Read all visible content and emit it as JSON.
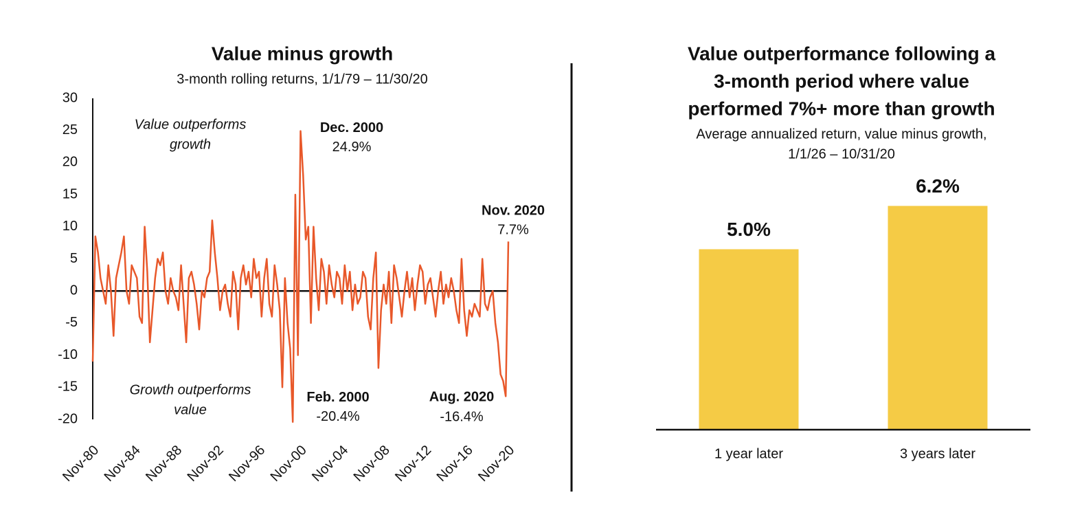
{
  "chart_data": [
    {
      "type": "line",
      "title": "Value minus growth",
      "subtitle": "3-month rolling returns, 1/1/79 – 11/30/20",
      "notes": [
        [
          "Value outperforms",
          "growth"
        ],
        [
          "Growth outperforms",
          "value"
        ]
      ],
      "annotations": [
        {
          "text": "Dec. 2000",
          "value": 24.9,
          "value_label": "24.9%"
        },
        {
          "text": "Feb. 2000",
          "value": -20.4,
          "value_label": "-20.4%"
        },
        {
          "text": "Aug. 2020",
          "value": -16.4,
          "value_label": "-16.4%"
        },
        {
          "text": "Nov. 2020",
          "value": 7.7,
          "value_label": "7.7%"
        }
      ],
      "categories": [
        "Nov-80",
        null,
        null,
        null,
        null,
        null,
        null,
        null,
        null,
        null,
        null,
        null,
        null,
        null,
        null,
        null,
        "Nov-84",
        null,
        null,
        null,
        null,
        null,
        null,
        null,
        null,
        null,
        null,
        null,
        null,
        null,
        null,
        null,
        "Nov-88",
        null,
        null,
        null,
        null,
        null,
        null,
        null,
        null,
        null,
        null,
        null,
        null,
        null,
        null,
        null,
        "Nov-92",
        null,
        null,
        null,
        null,
        null,
        null,
        null,
        null,
        null,
        null,
        null,
        null,
        null,
        null,
        null,
        "Nov-96",
        null,
        null,
        null,
        null,
        null,
        null,
        null,
        null,
        null,
        null,
        null,
        null,
        null,
        null,
        null,
        "Nov-00",
        null,
        null,
        null,
        null,
        null,
        null,
        null,
        null,
        null,
        null,
        null,
        null,
        null,
        null,
        null,
        "Nov-04",
        null,
        null,
        null,
        null,
        null,
        null,
        null,
        null,
        null,
        null,
        null,
        null,
        null,
        null,
        null,
        "Nov-08",
        null,
        null,
        null,
        null,
        null,
        null,
        null,
        null,
        null,
        null,
        null,
        null,
        null,
        null,
        null,
        "Nov-12",
        null,
        null,
        null,
        null,
        null,
        null,
        null,
        null,
        null,
        null,
        null,
        null,
        null,
        null,
        null,
        "Nov-16",
        null,
        null,
        null,
        null,
        null,
        null,
        null,
        null,
        null,
        null,
        null,
        null,
        null,
        null,
        null,
        "Nov-20"
      ],
      "values": [
        -11,
        8.5,
        6,
        2,
        0,
        -2,
        4,
        0,
        -7,
        2,
        4,
        6,
        8.5,
        0,
        -2,
        4,
        3,
        2,
        -4,
        -5,
        10,
        3,
        -8,
        -3,
        2,
        5,
        4,
        6,
        0,
        -2,
        2,
        0,
        -1,
        -3,
        4,
        -2,
        -8,
        2,
        3,
        1,
        -2,
        -6,
        0,
        -1,
        2,
        3,
        11,
        6,
        2,
        -3,
        0,
        1,
        -2,
        -4,
        3,
        1,
        -6,
        2,
        4,
        1,
        3,
        -1,
        5,
        2,
        3,
        -4,
        2,
        5,
        -2,
        -4,
        4,
        1,
        -3,
        -15,
        2,
        -5,
        -9,
        -20.4,
        15,
        -10,
        24.9,
        18,
        8,
        10,
        -5,
        10,
        2,
        -3,
        5,
        3,
        -2,
        4,
        1,
        -1,
        3,
        2,
        -2,
        4,
        0,
        3,
        -3,
        1,
        -2,
        -1,
        3,
        2,
        -4,
        -6,
        2,
        6,
        -12,
        -3,
        1,
        -2,
        3,
        -5,
        4,
        2,
        -1,
        -4,
        0,
        3,
        -1,
        2,
        -3,
        1,
        4,
        3,
        -2,
        1,
        2,
        -1,
        -4,
        0,
        3,
        -2,
        1,
        -1,
        2,
        0,
        -3,
        -5,
        5,
        -3,
        -7,
        -3,
        -4,
        -2,
        -3,
        -4,
        5,
        -2,
        -3,
        -1,
        0,
        -5,
        -8,
        -13,
        -14,
        -16.4,
        7.7
      ],
      "color": "#e8582a",
      "ylim": [
        -20,
        30
      ],
      "yticks": [
        -20,
        -15,
        -10,
        -5,
        0,
        5,
        10,
        15,
        20,
        25,
        30
      ]
    },
    {
      "type": "bar",
      "title": [
        "Value outperformance following a",
        "3-month period where value",
        "performed 7%+ more than growth"
      ],
      "subtitle": [
        "Average annualized return, value minus growth,",
        "1/1/26 – 10/31/20"
      ],
      "categories": [
        "1 year later",
        "3 years later"
      ],
      "values": [
        5.0,
        6.2
      ],
      "value_labels": [
        "5.0%",
        "6.2%"
      ],
      "color": "#f5cb45",
      "ylim": [
        0,
        8
      ]
    }
  ]
}
